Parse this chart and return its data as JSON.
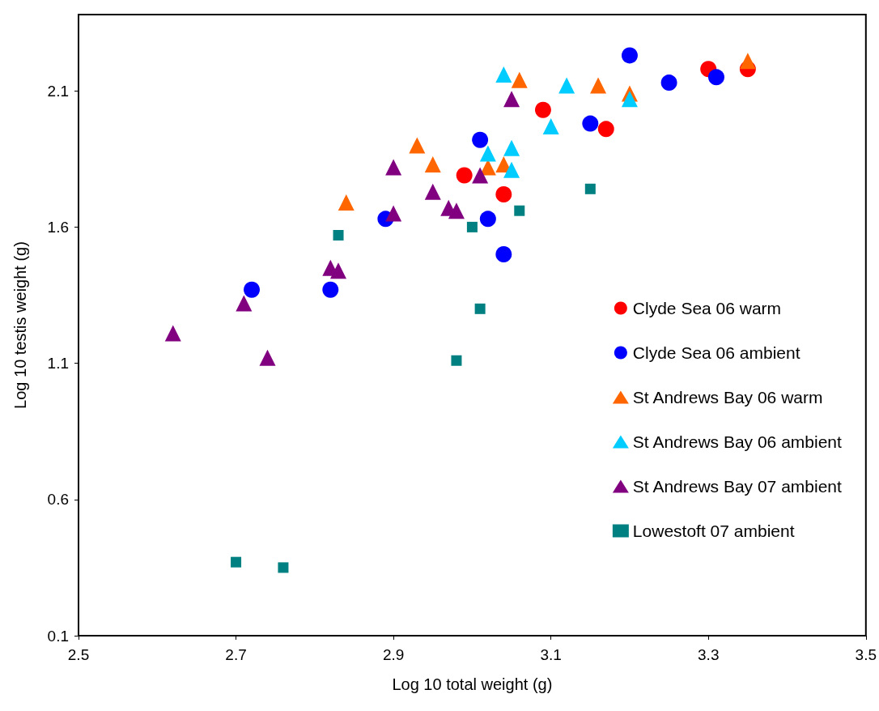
{
  "chart_data": {
    "type": "scatter",
    "xlabel": "Log 10 total weight (g)",
    "ylabel": "Log 10 testis weight (g)",
    "xlim": [
      2.5,
      3.5
    ],
    "xticks": [
      2.5,
      2.7,
      2.9,
      3.1,
      3.3,
      3.5
    ],
    "ylim": [
      0.1,
      2.38
    ],
    "yticks": [
      0.1,
      0.6,
      1.1,
      1.6,
      2.1
    ],
    "grid": false,
    "legend": "right",
    "series": [
      {
        "name": "Clyde Sea 06 warm",
        "color": "#ff0000",
        "marker": "circle",
        "x": [
          2.99,
          3.04,
          3.09,
          3.17,
          3.3,
          3.35
        ],
        "values": [
          1.79,
          1.72,
          2.03,
          1.96,
          2.18,
          2.18
        ]
      },
      {
        "name": "Clyde Sea 06 ambient",
        "color": "#0000ff",
        "marker": "circle",
        "x": [
          2.72,
          2.82,
          2.89,
          3.01,
          3.02,
          3.04,
          3.15,
          3.2,
          3.25,
          3.31
        ],
        "values": [
          1.37,
          1.37,
          1.63,
          1.92,
          1.63,
          1.5,
          1.98,
          2.23,
          2.13,
          2.15
        ]
      },
      {
        "name": "St Andrews Bay 06 warm",
        "color": "#ff6600",
        "marker": "triangle",
        "x": [
          2.84,
          2.93,
          2.95,
          3.02,
          3.04,
          3.06,
          3.16,
          3.2,
          3.35
        ],
        "values": [
          1.69,
          1.9,
          1.83,
          1.82,
          1.83,
          2.14,
          2.12,
          2.09,
          2.21
        ]
      },
      {
        "name": "St Andrews Bay 06 ambient",
        "color": "#00ccff",
        "marker": "triangle",
        "x": [
          3.04,
          3.12,
          3.2,
          3.1,
          3.02,
          3.05,
          3.05
        ],
        "values": [
          2.16,
          2.12,
          2.07,
          1.97,
          1.87,
          1.89,
          1.81
        ]
      },
      {
        "name": "St Andrews Bay 07 ambient",
        "color": "#800080",
        "marker": "triangle",
        "x": [
          3.05,
          2.9,
          2.95,
          3.01,
          2.97,
          2.98,
          2.9,
          2.82,
          2.83,
          2.71,
          2.62,
          2.74
        ],
        "values": [
          2.07,
          1.82,
          1.73,
          1.79,
          1.67,
          1.66,
          1.65,
          1.45,
          1.44,
          1.32,
          1.21,
          1.12
        ]
      },
      {
        "name": "Lowestoft 07 ambient",
        "color": "#008080",
        "marker": "square",
        "x": [
          2.83,
          3.0,
          3.06,
          3.15,
          3.01,
          2.98,
          2.7,
          2.76
        ],
        "values": [
          1.57,
          1.6,
          1.66,
          1.74,
          1.3,
          1.11,
          0.37,
          0.35
        ]
      }
    ]
  }
}
